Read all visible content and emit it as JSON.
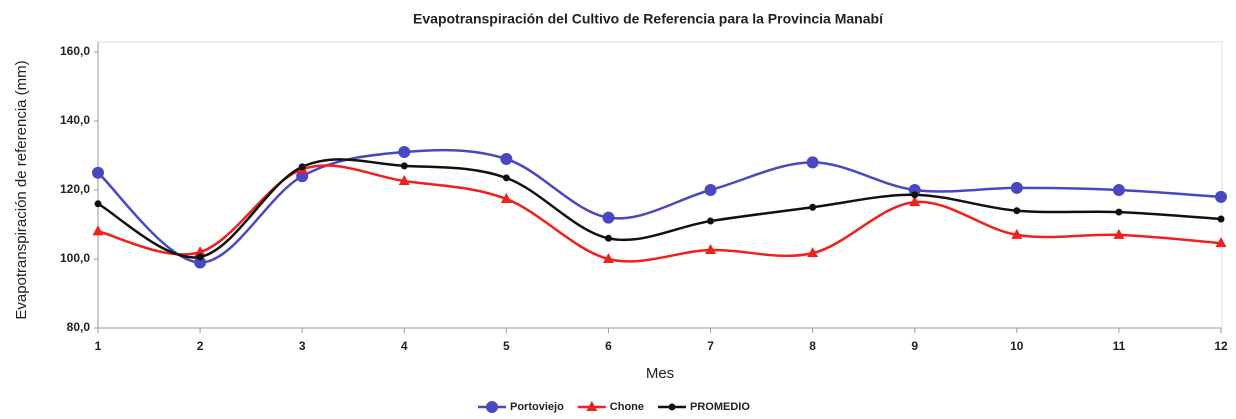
{
  "chart_data": {
    "type": "line",
    "title": "Evapotranspiración del Cultivo de Referencia para la Provincia Manabí",
    "x_label": "Mes",
    "y_label": "Evapotranspiración de referencia (mm)",
    "x": [
      1,
      2,
      3,
      4,
      5,
      6,
      7,
      8,
      9,
      10,
      11,
      12
    ],
    "xlim": [
      1,
      12
    ],
    "xticks": [
      1,
      2,
      3,
      4,
      5,
      6,
      7,
      8,
      9,
      10,
      11,
      12
    ],
    "ylim": [
      80,
      160
    ],
    "yticks": [
      {
        "value": 80,
        "label": "80,0"
      },
      {
        "value": 100,
        "label": "100,0"
      },
      {
        "value": 120,
        "label": "120,0"
      },
      {
        "value": 140,
        "label": "140,0"
      },
      {
        "value": 160,
        "label": "160,0"
      }
    ],
    "grid": false,
    "smooth": true,
    "legend": "bottom",
    "series": [
      {
        "name": "Portoviejo",
        "color": "#4a48c0",
        "marker": "circle",
        "values": [
          125,
          99,
          124,
          131,
          129,
          112,
          120,
          128,
          120,
          120.6,
          120,
          118
        ]
      },
      {
        "name": "Chone",
        "color": "#f0201c",
        "marker": "triangle",
        "values": [
          108,
          102,
          126,
          122.6,
          117.4,
          100,
          102.6,
          101.7,
          116.5,
          107,
          107,
          104.6
        ]
      },
      {
        "name": "PROMEDIO",
        "color": "#111111",
        "marker": "dot",
        "values": [
          116,
          100.6,
          126.7,
          127,
          123.5,
          106,
          111,
          115,
          118.6,
          114,
          113.6,
          111.6
        ]
      }
    ]
  }
}
